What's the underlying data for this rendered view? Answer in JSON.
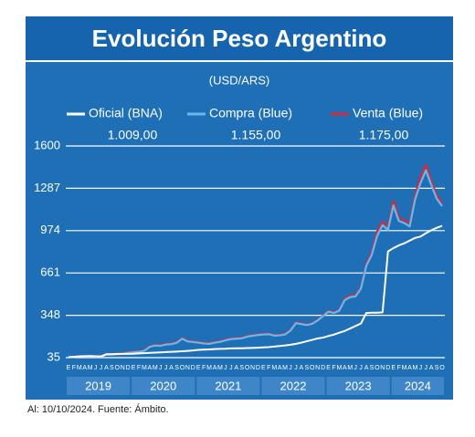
{
  "chart_data": {
    "type": "line",
    "title": "Evolución Peso Argentino",
    "subtitle": "(USD/ARS)",
    "categories": [
      "E",
      "F",
      "M",
      "A",
      "M",
      "J",
      "J",
      "A",
      "S",
      "O",
      "N",
      "D",
      "E",
      "F",
      "M",
      "A",
      "M",
      "J",
      "J",
      "A",
      "S",
      "O",
      "N",
      "D",
      "E",
      "F",
      "M",
      "A",
      "M",
      "J",
      "J",
      "A",
      "S",
      "O",
      "N",
      "D",
      "E",
      "F",
      "M",
      "A",
      "M",
      "J",
      "J",
      "A",
      "S",
      "O",
      "N",
      "D",
      "E",
      "F",
      "M",
      "A",
      "M",
      "J",
      "J",
      "A",
      "S",
      "O",
      "N",
      "D",
      "E",
      "F",
      "M",
      "A",
      "M",
      "J",
      "J",
      "A",
      "S",
      "O"
    ],
    "years": [
      "2019",
      "2020",
      "2021",
      "2022",
      "2023",
      "2024"
    ],
    "series": [
      {
        "name": "Venta (Blue)",
        "color": "#d8283c",
        "legend_value": "1.175,00",
        "values": [
          39,
          42,
          46,
          46,
          47,
          45,
          45,
          61,
          61,
          64,
          67,
          73,
          78,
          82,
          89,
          120,
          130,
          127,
          137,
          140,
          150,
          180,
          160,
          155,
          151,
          145,
          142,
          151,
          157,
          168,
          177,
          180,
          183,
          195,
          202,
          208,
          211,
          213,
          203,
          205,
          211,
          241,
          296,
          288,
          281,
          290,
          315,
          348,
          380,
          370,
          387,
          470,
          492,
          498,
          555,
          730,
          815,
          970,
          1040,
          1005,
          1195,
          1070,
          1050,
          1030,
          1235,
          1375,
          1460,
          1340,
          1235,
          1175
        ]
      },
      {
        "name": "Compra (Blue)",
        "color": "#6ab8ea",
        "legend_value": "1.155,00",
        "values": [
          37,
          40,
          44,
          44,
          45,
          43,
          43,
          58,
          58,
          60,
          63,
          70,
          75,
          78,
          85,
          115,
          125,
          122,
          132,
          135,
          145,
          175,
          155,
          150,
          146,
          140,
          137,
          146,
          152,
          163,
          172,
          175,
          178,
          190,
          197,
          203,
          206,
          208,
          198,
          200,
          206,
          236,
          290,
          283,
          276,
          285,
          310,
          343,
          375,
          365,
          382,
          460,
          482,
          488,
          545,
          715,
          795,
          935,
          1015,
          980,
          1160,
          1045,
          1030,
          1005,
          1205,
          1325,
          1420,
          1310,
          1210,
          1155
        ]
      },
      {
        "name": "Oficial (BNA)",
        "color": "#ffffff",
        "legend_value": "1.009,00",
        "values": [
          39,
          41,
          44,
          46,
          47,
          45,
          44,
          60,
          60,
          63,
          63,
          63,
          64,
          66,
          68,
          70,
          72,
          74,
          76,
          78,
          80,
          82,
          85,
          88,
          92,
          94,
          96,
          98,
          100,
          101,
          103,
          104,
          104,
          106,
          107,
          108,
          111,
          113,
          117,
          121,
          125,
          130,
          137,
          146,
          156,
          166,
          177,
          183,
          195,
          205,
          219,
          232,
          250,
          269,
          287,
          365,
          367,
          367,
          370,
          820,
          845,
          865,
          880,
          900,
          920,
          930,
          955,
          977,
          995,
          1009
        ]
      }
    ],
    "ylim": [
      35,
      1600
    ],
    "yticks": [
      35,
      348,
      661,
      974,
      1287,
      1600
    ],
    "grid": true,
    "note": "Al: 10/10/2024. Fuente: Ámbito."
  }
}
